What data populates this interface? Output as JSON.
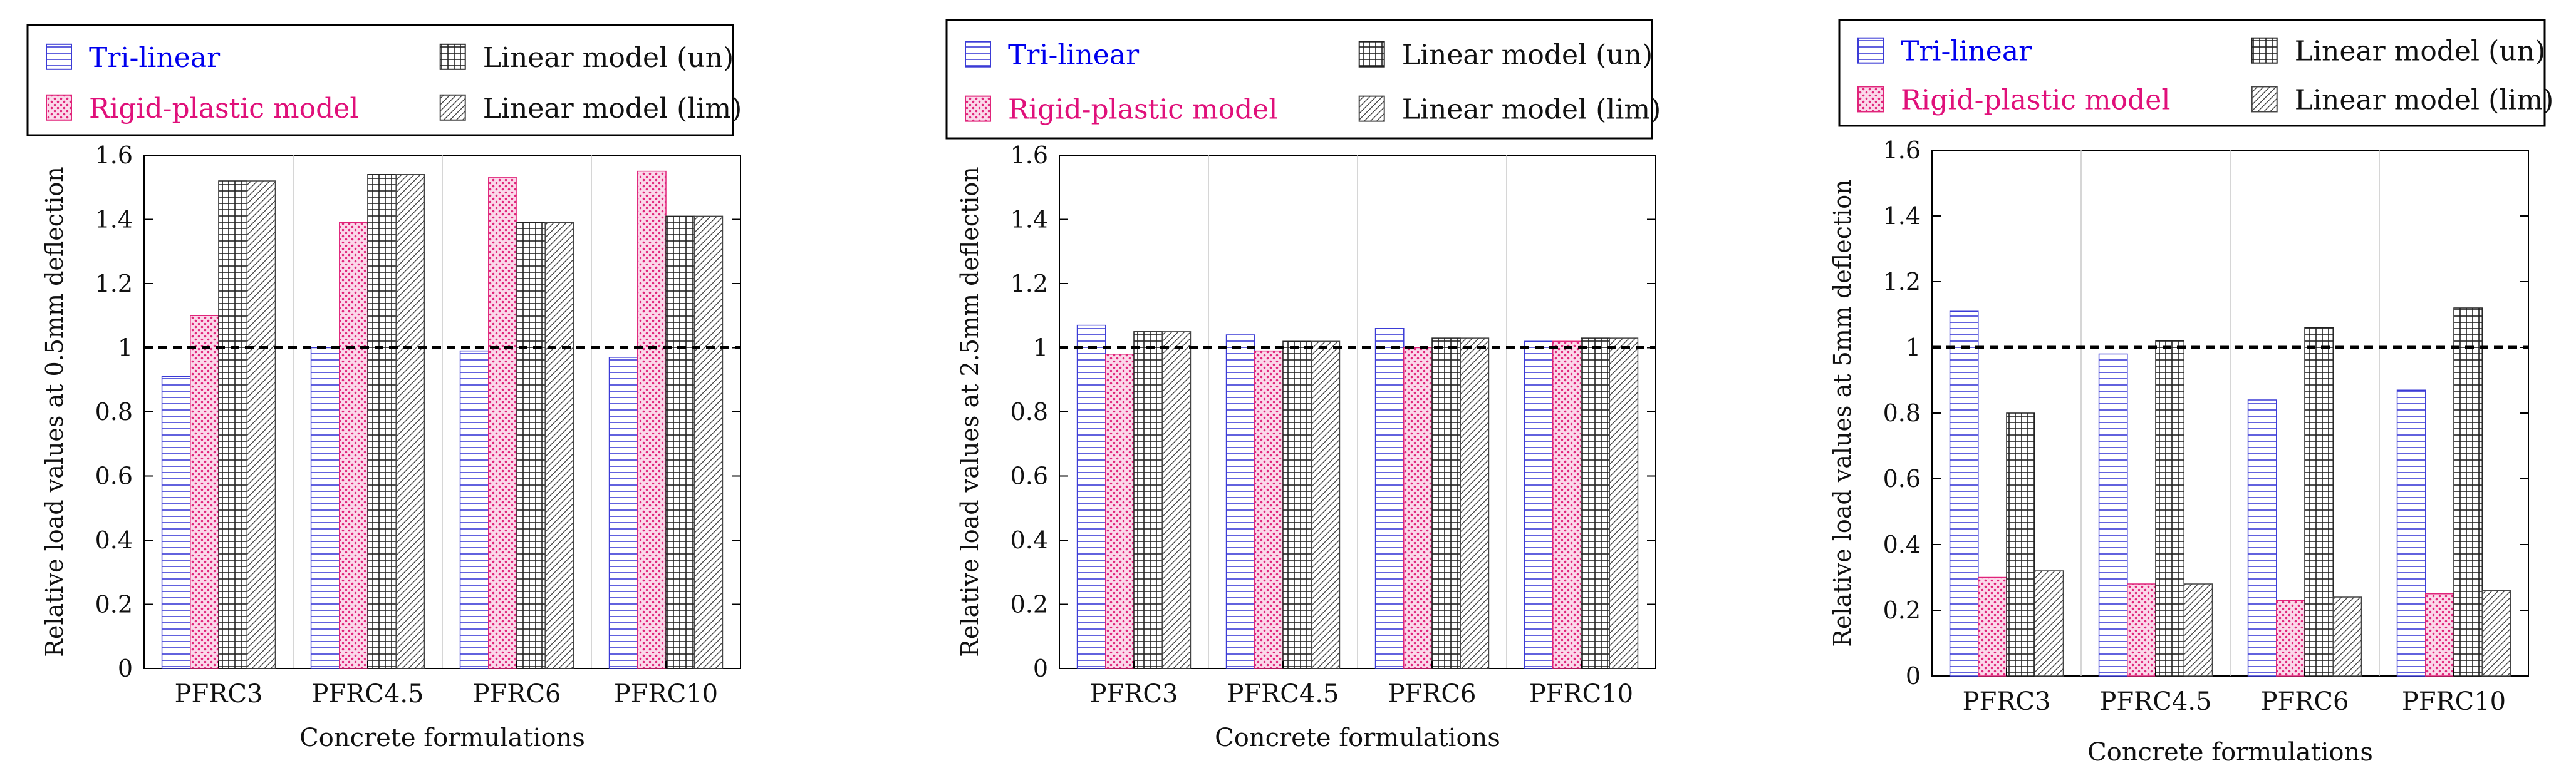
{
  "chart_data": [
    {
      "type": "bar",
      "title": "",
      "categories": [
        "PFRC3",
        "PFRC4.5",
        "PFRC6",
        "PFRC10"
      ],
      "xlabel": "Concrete formulations",
      "ylabel": "Relative load values at 0.5mm deflection",
      "ylim": [
        0,
        1.6
      ],
      "yticks": [
        "0",
        "0.2",
        "0.4",
        "0.6",
        "0.8",
        "1",
        "1.2",
        "1.4",
        "1.6"
      ],
      "reference_line": 1,
      "legend_position": "top",
      "series": [
        {
          "name": "Tri-linear",
          "values": [
            0.91,
            1.0,
            0.99,
            0.97
          ]
        },
        {
          "name": "Rigid-plastic model",
          "values": [
            1.1,
            1.39,
            1.53,
            1.55
          ]
        },
        {
          "name": "Linear model (un)",
          "values": [
            1.52,
            1.54,
            1.39,
            1.41
          ]
        },
        {
          "name": "Linear model (lim)",
          "values": [
            1.52,
            1.54,
            1.39,
            1.41
          ]
        }
      ]
    },
    {
      "type": "bar",
      "title": "",
      "categories": [
        "PFRC3",
        "PFRC4.5",
        "PFRC6",
        "PFRC10"
      ],
      "xlabel": "Concrete formulations",
      "ylabel": "Relative load values at 2.5mm deflection",
      "ylim": [
        0,
        1.6
      ],
      "yticks": [
        "0",
        "0.2",
        "0.4",
        "0.6",
        "0.8",
        "1",
        "1.2",
        "1.4",
        "1.6"
      ],
      "reference_line": 1,
      "legend_position": "top",
      "series": [
        {
          "name": "Tri-linear",
          "values": [
            1.07,
            1.04,
            1.06,
            1.02
          ]
        },
        {
          "name": "Rigid-plastic model",
          "values": [
            0.98,
            0.99,
            1.0,
            1.02
          ]
        },
        {
          "name": "Linear model (un)",
          "values": [
            1.05,
            1.02,
            1.03,
            1.03
          ]
        },
        {
          "name": "Linear model (lim)",
          "values": [
            1.05,
            1.02,
            1.03,
            1.03
          ]
        }
      ]
    },
    {
      "type": "bar",
      "title": "",
      "categories": [
        "PFRC3",
        "PFRC4.5",
        "PFRC6",
        "PFRC10"
      ],
      "xlabel": "Concrete formulations",
      "ylabel": "Relative load values at 5mm deflection",
      "ylim": [
        0,
        1.6
      ],
      "yticks": [
        "0",
        "0.2",
        "0.4",
        "0.6",
        "0.8",
        "1",
        "1.2",
        "1.4",
        "1.6"
      ],
      "reference_line": 1,
      "legend_position": "top",
      "series": [
        {
          "name": "Tri-linear",
          "values": [
            1.11,
            0.98,
            0.84,
            0.87
          ]
        },
        {
          "name": "Rigid-plastic model",
          "values": [
            0.3,
            0.28,
            0.23,
            0.25
          ]
        },
        {
          "name": "Linear model (un)",
          "values": [
            0.8,
            1.02,
            1.06,
            1.12
          ]
        },
        {
          "name": "Linear model (lim)",
          "values": [
            0.32,
            0.28,
            0.24,
            0.26
          ]
        }
      ]
    }
  ],
  "style": {
    "colors": {
      "tri_linear": "#3b3bd6",
      "rigid_plastic": "#e0247a",
      "linear_un": "#222222",
      "linear_lim": "#444444",
      "axis": "#000000",
      "grid": "#c8c8c8"
    },
    "legend_text_colors": [
      "#0000ee",
      "#e0107a",
      "#111111",
      "#111111"
    ]
  }
}
